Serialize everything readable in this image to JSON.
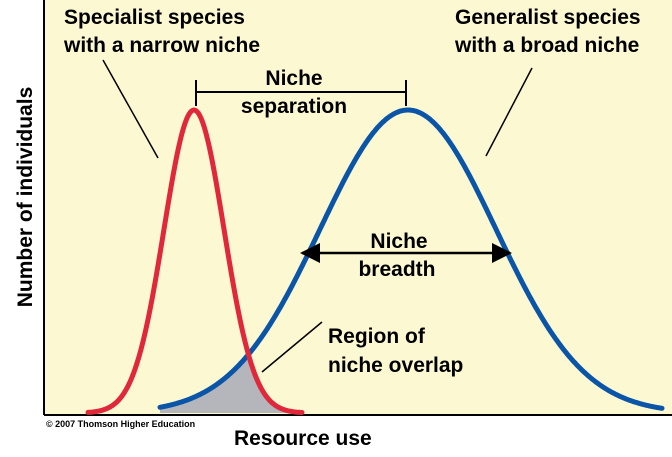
{
  "colors": {
    "background": "#FCF8D2",
    "specialist_curve": "#E0283A",
    "generalist_curve": "#0A55A8",
    "overlap_fill": "#B4B6BC",
    "axis": "#000000",
    "text": "#000000"
  },
  "labels": {
    "specialist": [
      "Specialist species",
      "with a narrow niche"
    ],
    "generalist": [
      "Generalist species",
      "with a broad niche"
    ],
    "separation": [
      "Niche",
      "separation"
    ],
    "breadth": [
      "Niche",
      "breadth"
    ],
    "overlap": [
      "Region of",
      "niche overlap"
    ],
    "y_axis": "Number of individuals",
    "x_axis": "Resource use",
    "copyright": "© 2007 Thomson Higher Education"
  }
}
